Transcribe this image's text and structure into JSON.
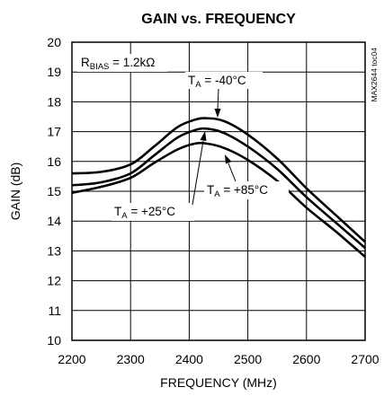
{
  "chart_data": {
    "type": "line",
    "title": "GAIN vs. FREQUENCY",
    "xlabel": "FREQUENCY (MHz)",
    "ylabel": "GAIN (dB)",
    "xlim": [
      2200,
      2700
    ],
    "ylim": [
      10,
      20
    ],
    "x_ticks": [
      "2200",
      "2300",
      "2400",
      "2500",
      "2600",
      "2700"
    ],
    "y_ticks": [
      "10",
      "11",
      "12",
      "13",
      "14",
      "15",
      "16",
      "17",
      "18",
      "19",
      "20"
    ],
    "grid": true,
    "side_label": "MAX2644 toc04",
    "annotations": {
      "bias": {
        "main": "R",
        "sub": "BIAS",
        "rest": " = 1.2kΩ"
      },
      "minus40": {
        "main": "T",
        "sub": "A",
        "rest": " = -40°C"
      },
      "plus25": {
        "main": "T",
        "sub": "A",
        "rest": " = +25°C"
      },
      "plus85": {
        "main": "T",
        "sub": "A",
        "rest": " = +85°C"
      }
    },
    "series": [
      {
        "name": "T_A = -40°C",
        "x": [
          2200,
          2250,
          2300,
          2340,
          2380,
          2410,
          2430,
          2460,
          2500,
          2550,
          2600,
          2650,
          2700
        ],
        "y": [
          15.6,
          15.65,
          15.9,
          16.5,
          17.15,
          17.4,
          17.45,
          17.35,
          16.9,
          16.1,
          15.1,
          14.2,
          13.3
        ]
      },
      {
        "name": "T_A = +25°C",
        "x": [
          2200,
          2250,
          2300,
          2340,
          2380,
          2410,
          2430,
          2460,
          2500,
          2550,
          2600,
          2650,
          2700
        ],
        "y": [
          15.2,
          15.3,
          15.6,
          16.2,
          16.8,
          17.05,
          17.1,
          16.95,
          16.5,
          15.75,
          14.8,
          13.95,
          13.1
        ]
      },
      {
        "name": "T_A = +85°C",
        "x": [
          2200,
          2250,
          2300,
          2340,
          2380,
          2410,
          2430,
          2460,
          2500,
          2550,
          2600,
          2650,
          2700
        ],
        "y": [
          14.95,
          15.15,
          15.45,
          15.95,
          16.4,
          16.6,
          16.6,
          16.45,
          16.05,
          15.35,
          14.45,
          13.65,
          12.8
        ]
      }
    ]
  }
}
